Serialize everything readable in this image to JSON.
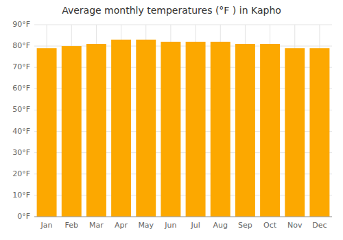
{
  "chart_data": {
    "type": "bar",
    "title": "Average monthly temperatures (°F ) in Kapho",
    "categories": [
      "Jan",
      "Feb",
      "Mar",
      "Apr",
      "May",
      "Jun",
      "Jul",
      "Aug",
      "Sep",
      "Oct",
      "Nov",
      "Dec"
    ],
    "values": [
      79,
      80,
      81,
      83,
      83,
      82,
      82,
      82,
      81,
      81,
      79,
      79
    ],
    "color": "#FCA800",
    "ylim": [
      0,
      90
    ],
    "yticks": [
      {
        "value": 0,
        "label": "0°F"
      },
      {
        "value": 10,
        "label": "10°F"
      },
      {
        "value": 20,
        "label": "20°F"
      },
      {
        "value": 30,
        "label": "30°F"
      },
      {
        "value": 40,
        "label": "40°F"
      },
      {
        "value": 50,
        "label": "50°F"
      },
      {
        "value": 60,
        "label": "60°F"
      },
      {
        "value": 70,
        "label": "70°F"
      },
      {
        "value": 80,
        "label": "80°F"
      },
      {
        "value": 90,
        "label": "90°F"
      }
    ],
    "grid": true
  }
}
